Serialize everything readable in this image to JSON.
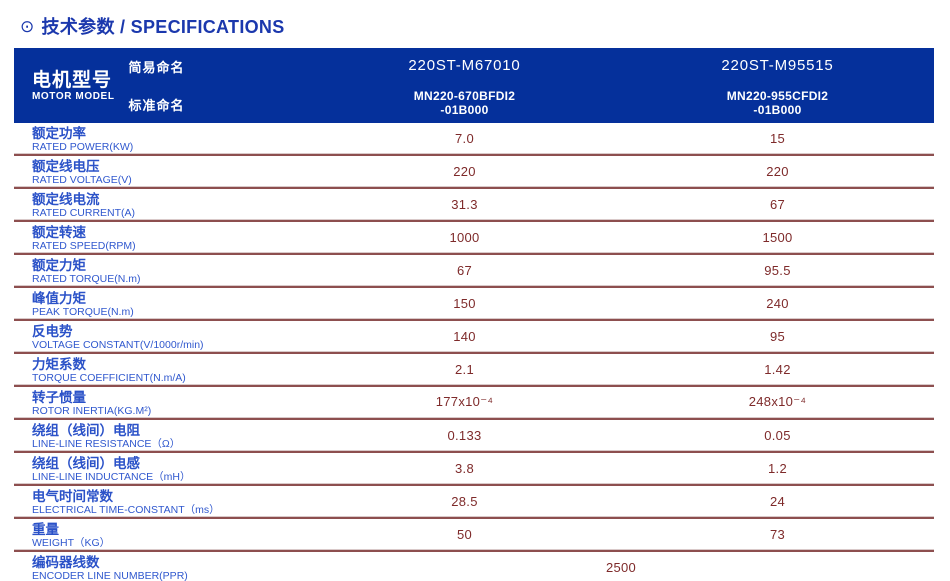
{
  "title": {
    "icon_glyph": "⊙",
    "icon_name": "circled-dot-icon",
    "text": "技术参数 / SPECIFICATIONS"
  },
  "colors": {
    "header_bg": "#05309b",
    "title_text": "#1b38ad",
    "label_text": "#2b52c8",
    "value_text": "#7e2a2a",
    "separator_dark": "#8d4f4f",
    "separator_light": "#d9c9c9"
  },
  "table": {
    "header": {
      "model_zh": "电机型号",
      "model_en": "MOTOR MODEL",
      "simple_label": "简易命名",
      "standard_label": "标准命名",
      "columns": [
        {
          "simple": "220ST-M67010",
          "standard_line1": "MN220-670BFDI2",
          "standard_line2": "-01B000"
        },
        {
          "simple": "220ST-M95515",
          "standard_line1": "MN220-955CFDI2",
          "standard_line2": "-01B000"
        }
      ]
    },
    "rows": [
      {
        "zh": "额定功率",
        "en": "RATED POWER(KW)",
        "v1": "7.0",
        "v2": "15"
      },
      {
        "zh": "额定线电压",
        "en": "RATED VOLTAGE(V)",
        "v1": "220",
        "v2": "220"
      },
      {
        "zh": "额定线电流",
        "en": "RATED CURRENT(A)",
        "v1": "31.3",
        "v2": "67"
      },
      {
        "zh": "额定转速",
        "en": "RATED SPEED(RPM)",
        "v1": "1000",
        "v2": "1500"
      },
      {
        "zh": "额定力矩",
        "en": "RATED TORQUE(N.m)",
        "v1": "67",
        "v2": "95.5"
      },
      {
        "zh": "峰值力矩",
        "en": "PEAK TORQUE(N.m)",
        "v1": "150",
        "v2": "240"
      },
      {
        "zh": "反电势",
        "en": "VOLTAGE CONSTANT(V/1000r/min)",
        "v1": "140",
        "v2": "95"
      },
      {
        "zh": "力矩系数",
        "en": "TORQUE COEFFICIENT(N.m/A)",
        "v1": "2.1",
        "v2": "1.42"
      },
      {
        "zh": "转子惯量",
        "en": "ROTOR INERTIA(KG.M²)",
        "v1": "177x10⁻⁴",
        "v2": "248x10⁻⁴"
      },
      {
        "zh": "绕组（线间）电阻",
        "en": "LINE-LINE RESISTANCE（Ω）",
        "v1": "0.133",
        "v2": "0.05"
      },
      {
        "zh": "绕组（线间）电感",
        "en": "LINE-LINE INDUCTANCE（mH）",
        "v1": "3.8",
        "v2": "1.2"
      },
      {
        "zh": "电气时间常数",
        "en": "ELECTRICAL TIME-CONSTANT（ms）",
        "v1": "28.5",
        "v2": "24"
      },
      {
        "zh": "重量",
        "en": "WEIGHT（KG）",
        "v1": "50",
        "v2": "73"
      },
      {
        "zh": "编码器线数",
        "en": "ENCODER LINE NUMBER(PPR)",
        "merged": "2500"
      }
    ]
  }
}
